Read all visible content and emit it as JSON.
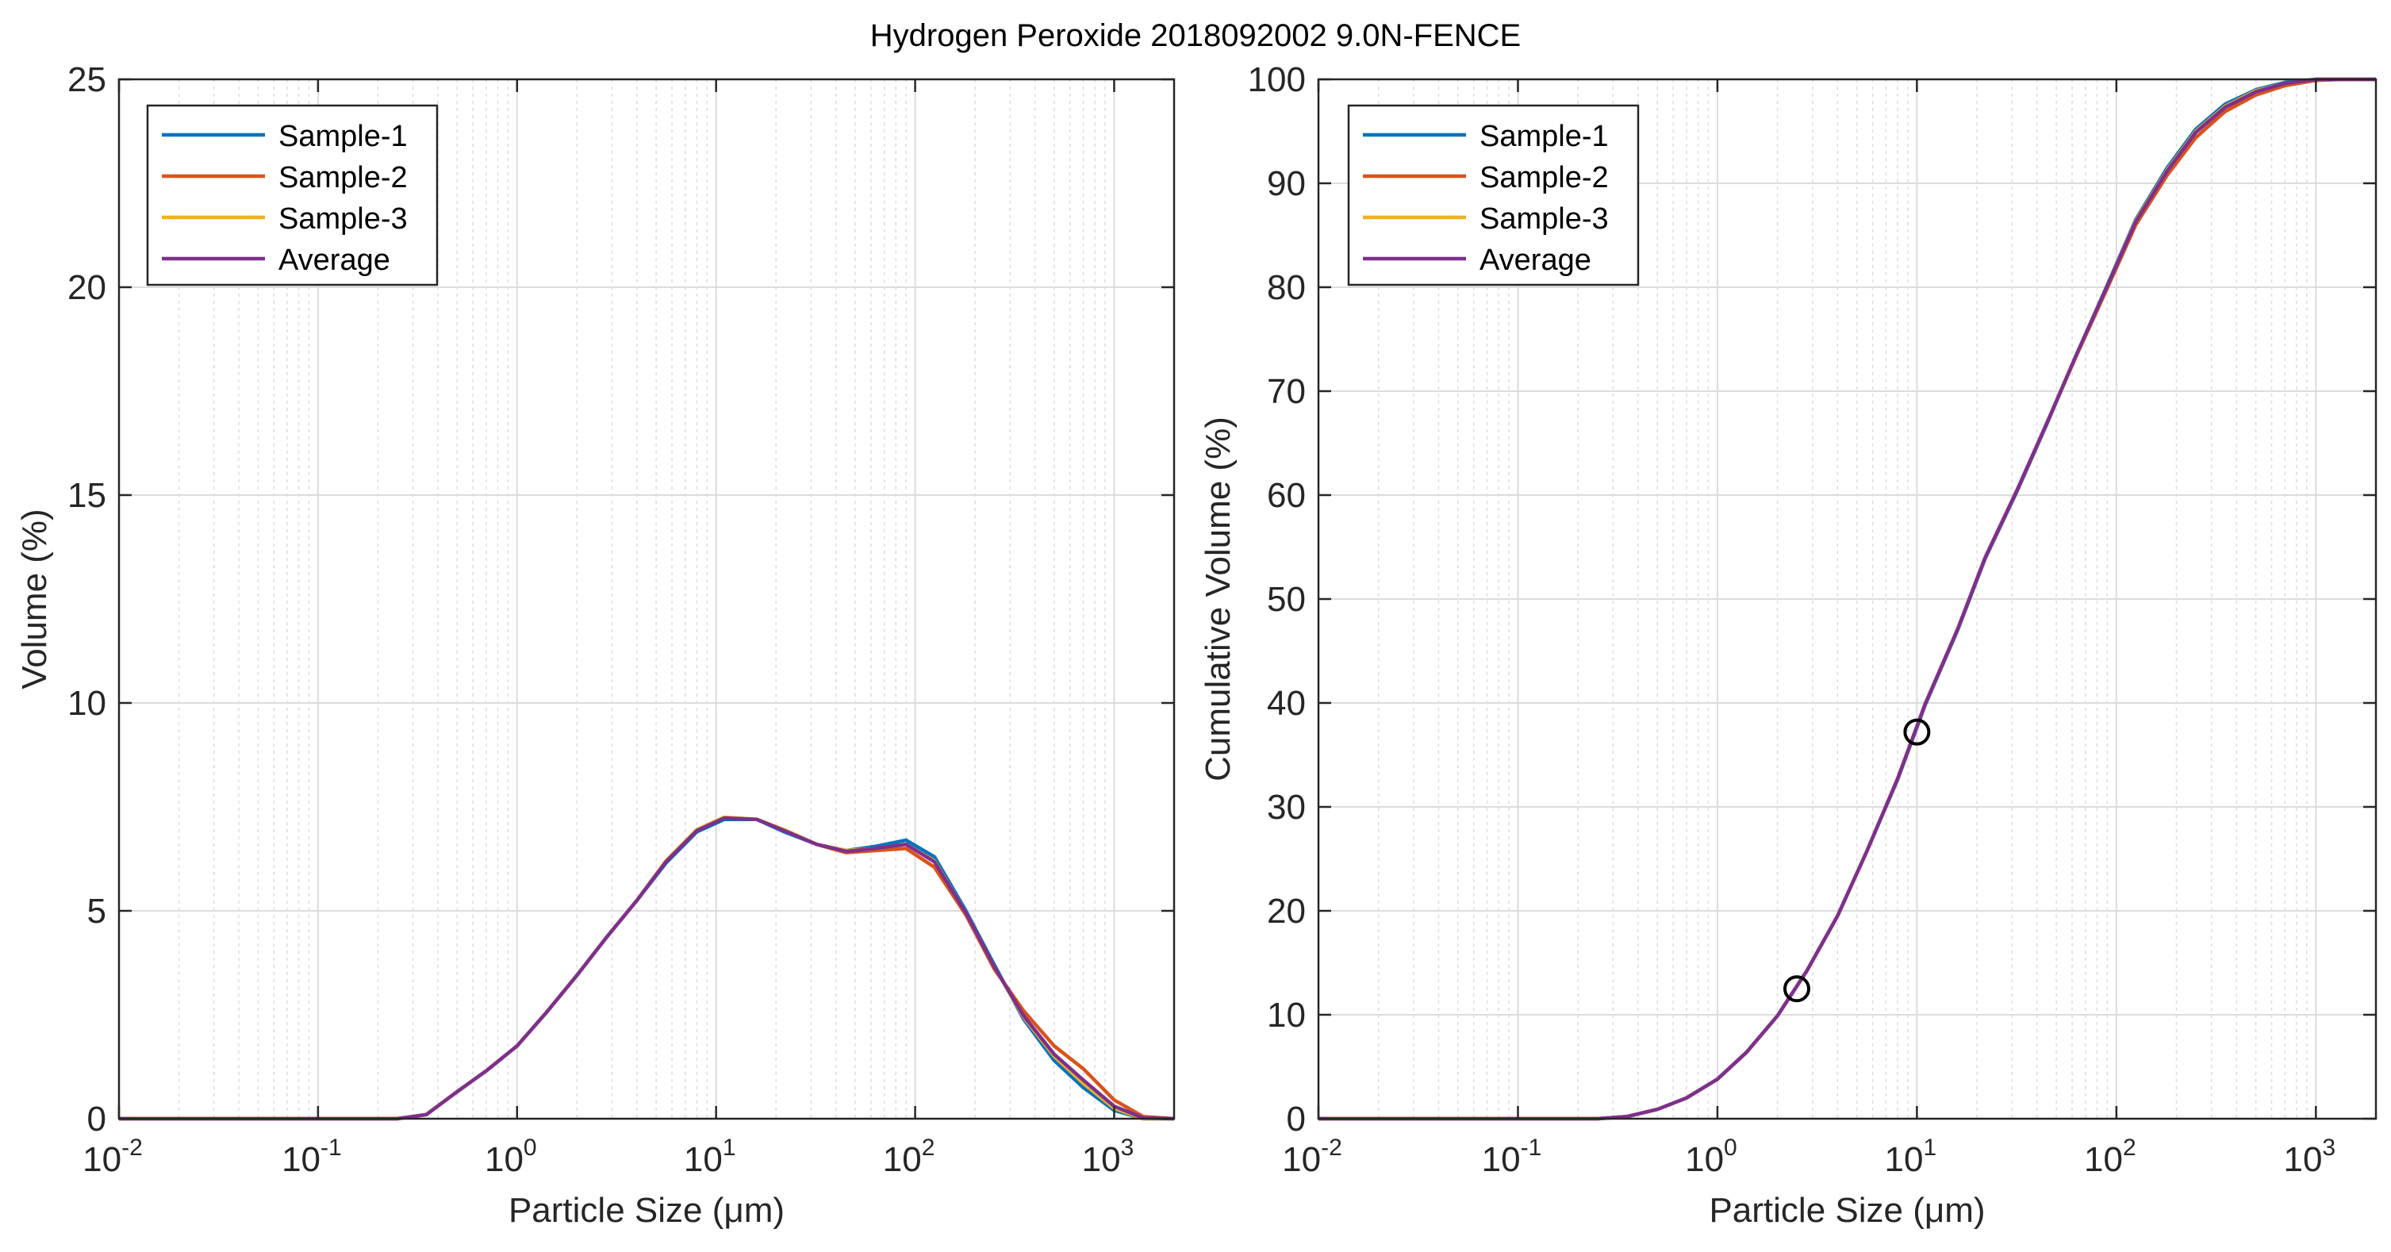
{
  "figure_title": "Hydrogen Peroxide 2018092002 9.0N-FENCE",
  "colors": {
    "sample1": "#0072bd",
    "sample2": "#d95319",
    "sample3": "#edb120",
    "average": "#7e2f8e",
    "grid": "#dcdcdc",
    "axis": "#262626",
    "marker": "#000000"
  },
  "chart_data": [
    {
      "type": "line",
      "xscale": "log",
      "xlim": [
        0.01,
        2000
      ],
      "ylim": [
        0,
        25
      ],
      "xlabel": "Particle Size (μm)",
      "ylabel": "Volume (%)",
      "xtick_labels": [
        "10",
        "10",
        "10",
        "10",
        "10",
        "10"
      ],
      "xtick_exponents": [
        "-2",
        "-1",
        "0",
        "1",
        "2",
        "3"
      ],
      "xticks": [
        0.01,
        0.1,
        1,
        10,
        100,
        1000
      ],
      "yticks": [
        0,
        5,
        10,
        15,
        20,
        25
      ],
      "ytick_labels": [
        "0",
        "5",
        "10",
        "15",
        "20",
        "25"
      ],
      "grid": true,
      "legend_position": "top-left",
      "legend": [
        "Sample-1",
        "Sample-2",
        "Sample-3",
        "Average"
      ],
      "x": [
        0.01,
        0.02,
        0.05,
        0.1,
        0.2,
        0.25,
        0.35,
        0.5,
        0.7,
        1,
        1.4,
        2,
        2.8,
        4,
        5.6,
        8,
        11,
        16,
        22,
        32,
        45,
        63,
        90,
        125,
        180,
        250,
        350,
        500,
        700,
        1000,
        1400,
        2000
      ],
      "series": [
        {
          "name": "Sample-1",
          "color_key": "sample1",
          "values": [
            0,
            0,
            0,
            0,
            0,
            0,
            0.1,
            0.65,
            1.15,
            1.75,
            2.55,
            3.45,
            4.35,
            5.25,
            6.15,
            6.9,
            7.2,
            7.2,
            6.9,
            6.6,
            6.45,
            6.55,
            6.7,
            6.3,
            5.0,
            3.7,
            2.4,
            1.4,
            0.75,
            0.2,
            0,
            0
          ]
        },
        {
          "name": "Sample-2",
          "color_key": "sample2",
          "values": [
            0,
            0,
            0,
            0,
            0,
            0,
            0.1,
            0.65,
            1.15,
            1.75,
            2.55,
            3.45,
            4.35,
            5.25,
            6.2,
            6.95,
            7.25,
            7.2,
            6.95,
            6.6,
            6.4,
            6.45,
            6.5,
            6.05,
            4.9,
            3.6,
            2.6,
            1.75,
            1.2,
            0.45,
            0.05,
            0
          ]
        },
        {
          "name": "Sample-3",
          "color_key": "sample3",
          "values": [
            0,
            0,
            0,
            0,
            0,
            0,
            0.1,
            0.65,
            1.15,
            1.75,
            2.55,
            3.45,
            4.35,
            5.25,
            6.2,
            6.95,
            7.25,
            7.2,
            6.95,
            6.6,
            6.45,
            6.5,
            6.6,
            6.2,
            4.95,
            3.65,
            2.45,
            1.5,
            0.85,
            0.25,
            0,
            0
          ]
        },
        {
          "name": "Average",
          "color_key": "average",
          "values": [
            0,
            0,
            0,
            0,
            0,
            0,
            0.1,
            0.65,
            1.15,
            1.75,
            2.55,
            3.45,
            4.35,
            5.25,
            6.18,
            6.93,
            7.23,
            7.2,
            6.93,
            6.6,
            6.43,
            6.5,
            6.6,
            6.18,
            4.95,
            3.65,
            2.48,
            1.55,
            0.93,
            0.3,
            0.02,
            0
          ]
        }
      ]
    },
    {
      "type": "line",
      "xscale": "log",
      "xlim": [
        0.01,
        2000
      ],
      "ylim": [
        0,
        100
      ],
      "xlabel": "Particle Size (μm)",
      "ylabel": "Cumulative Volume (%)",
      "xtick_labels": [
        "10",
        "10",
        "10",
        "10",
        "10",
        "10"
      ],
      "xtick_exponents": [
        "-2",
        "-1",
        "0",
        "1",
        "2",
        "3"
      ],
      "xticks": [
        0.01,
        0.1,
        1,
        10,
        100,
        1000
      ],
      "yticks": [
        0,
        10,
        20,
        30,
        40,
        50,
        60,
        70,
        80,
        90,
        100
      ],
      "ytick_labels": [
        "0",
        "10",
        "20",
        "30",
        "40",
        "50",
        "60",
        "70",
        "80",
        "90",
        "100"
      ],
      "grid": true,
      "legend_position": "top-left",
      "legend": [
        "Sample-1",
        "Sample-2",
        "Sample-3",
        "Average"
      ],
      "x": [
        0.01,
        0.02,
        0.05,
        0.1,
        0.2,
        0.25,
        0.35,
        0.5,
        0.7,
        1,
        1.4,
        2,
        2.8,
        4,
        5.6,
        8,
        11,
        16,
        22,
        32,
        45,
        63,
        90,
        125,
        180,
        250,
        350,
        500,
        700,
        1000,
        1400,
        2000
      ],
      "series": [
        {
          "name": "Sample-1",
          "color_key": "sample1",
          "values": [
            0,
            0,
            0,
            0,
            0,
            0,
            0.2,
            0.9,
            2.0,
            3.8,
            6.4,
            9.9,
            14.2,
            19.5,
            25.7,
            32.6,
            39.8,
            47.0,
            53.9,
            60.5,
            66.9,
            73.5,
            80.2,
            86.5,
            91.5,
            95.2,
            97.6,
            99.0,
            99.7,
            100,
            100,
            100
          ]
        },
        {
          "name": "Sample-2",
          "color_key": "sample2",
          "values": [
            0,
            0,
            0,
            0,
            0,
            0,
            0.2,
            0.9,
            2.0,
            3.8,
            6.4,
            9.9,
            14.2,
            19.5,
            25.7,
            32.7,
            39.9,
            47.1,
            54.0,
            60.6,
            67.0,
            73.4,
            79.9,
            86.0,
            90.8,
            94.4,
            96.9,
            98.5,
            99.4,
            99.9,
            100,
            100
          ]
        },
        {
          "name": "Sample-3",
          "color_key": "sample3",
          "values": [
            0,
            0,
            0,
            0,
            0,
            0,
            0.2,
            0.9,
            2.0,
            3.8,
            6.4,
            9.9,
            14.2,
            19.5,
            25.7,
            32.7,
            39.9,
            47.1,
            54.0,
            60.6,
            67.0,
            73.5,
            80.1,
            86.4,
            91.3,
            95.0,
            97.4,
            98.9,
            99.6,
            100,
            100,
            100
          ]
        },
        {
          "name": "Average",
          "color_key": "average",
          "values": [
            0,
            0,
            0,
            0,
            0,
            0,
            0.2,
            0.9,
            2.0,
            3.8,
            6.4,
            9.9,
            14.2,
            19.5,
            25.7,
            32.7,
            39.9,
            47.1,
            54.0,
            60.6,
            67.0,
            73.5,
            80.1,
            86.3,
            91.2,
            94.9,
            97.3,
            98.8,
            99.6,
            100,
            100,
            100
          ]
        }
      ],
      "markers": [
        {
          "x": 2.5,
          "y": 12.5,
          "shape": "circle"
        },
        {
          "x": 10,
          "y": 37.2,
          "shape": "circle"
        }
      ]
    }
  ]
}
